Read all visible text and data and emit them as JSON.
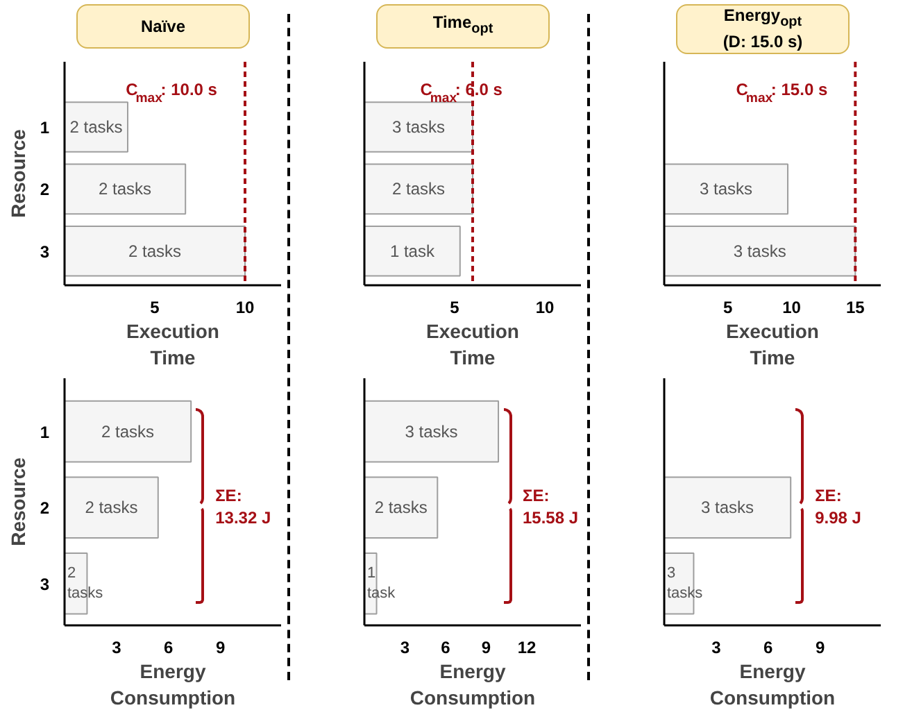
{
  "chart_data": [
    {
      "type": "bar",
      "orientation": "horizontal",
      "title": "Naïve",
      "categories": [
        "1",
        "2",
        "3"
      ],
      "values": [
        3.5,
        6.7,
        10.0
      ],
      "color": "#f5f5f5",
      "xlabel": "Execution\nTime",
      "ylabel": "Resource",
      "xlim": [
        0,
        12
      ],
      "xticks": [
        5,
        10
      ],
      "ref_lines": [
        {
          "axis": "x",
          "value": 10.0,
          "label": "C$_{max}$: 10.0 s",
          "color": "#a50f15",
          "line_style": "dashed"
        }
      ],
      "grid": false,
      "annotations": [
        "2 tasks",
        "2 tasks",
        "2 tasks"
      ]
    },
    {
      "type": "bar",
      "orientation": "horizontal",
      "title": "Time$_{opt}$",
      "categories": [
        "1",
        "2",
        "3"
      ],
      "values": [
        6.0,
        6.0,
        5.3
      ],
      "color": "#f5f5f5",
      "xlabel": "Execution\nTime",
      "xlim": [
        0,
        12
      ],
      "xticks": [
        5,
        10
      ],
      "tick_labels": "x",
      "ref_lines": [
        {
          "axis": "x",
          "value": 6.0,
          "label": "C$_{max}$: 6.0 s",
          "color": "#a50f15",
          "line_style": "dashed"
        }
      ],
      "grid": false,
      "annotations": [
        "3 tasks",
        "2 tasks",
        "1 task"
      ]
    },
    {
      "type": "bar",
      "orientation": "horizontal",
      "title": "Energy$_{opt}$\n(D: 15.0 s)",
      "categories": [
        "1",
        "2",
        "3"
      ],
      "values": [
        null,
        9.7,
        15.0
      ],
      "color": "#f5f5f5",
      "xlabel": "Execution\nTime",
      "xlim": [
        0,
        17
      ],
      "xticks": [
        5,
        10,
        15
      ],
      "tick_labels": "x",
      "ref_lines": [
        {
          "axis": "x",
          "value": 15.0,
          "label": "C$_{max}$: 15.0 s",
          "color": "#a50f15",
          "line_style": "dashed"
        }
      ],
      "grid": false,
      "annotations": [
        "3 tasks",
        "3 tasks"
      ]
    },
    {
      "type": "bar",
      "orientation": "horizontal",
      "categories": [
        "1",
        "2",
        "3"
      ],
      "values": [
        7.3,
        5.4,
        1.3
      ],
      "color": "#f5f5f5",
      "xlabel": "Energy\nConsumption",
      "ylabel": "Resource",
      "xlim": [
        0,
        12.5
      ],
      "xticks": [
        3,
        6,
        9
      ],
      "grid": false,
      "annotations": [
        "2 tasks",
        "2 tasks",
        "2 tasks",
        "ΣE:\n13.32 J"
      ]
    },
    {
      "type": "bar",
      "orientation": "horizontal",
      "categories": [
        "1",
        "2",
        "3"
      ],
      "values": [
        9.9,
        5.4,
        0.9
      ],
      "color": "#f5f5f5",
      "xlabel": "Energy\nConsumption",
      "xlim": [
        0,
        16
      ],
      "xticks": [
        3,
        6,
        9,
        12
      ],
      "tick_labels": "x",
      "grid": false,
      "annotations": [
        "3 tasks",
        "2 tasks",
        "1 task",
        "ΣE:\n15.58 J"
      ]
    },
    {
      "type": "bar",
      "orientation": "horizontal",
      "categories": [
        "1",
        "2",
        "3"
      ],
      "values": [
        null,
        7.3,
        1.7
      ],
      "color": "#f5f5f5",
      "xlabel": "Energy\nConsumption",
      "xlim": [
        0,
        12.5
      ],
      "xticks": [
        3,
        6,
        9
      ],
      "tick_labels": "x",
      "grid": false,
      "annotations": [
        "3 tasks",
        "3 tasks",
        "ΣE:\n9.98 J"
      ]
    }
  ]
}
